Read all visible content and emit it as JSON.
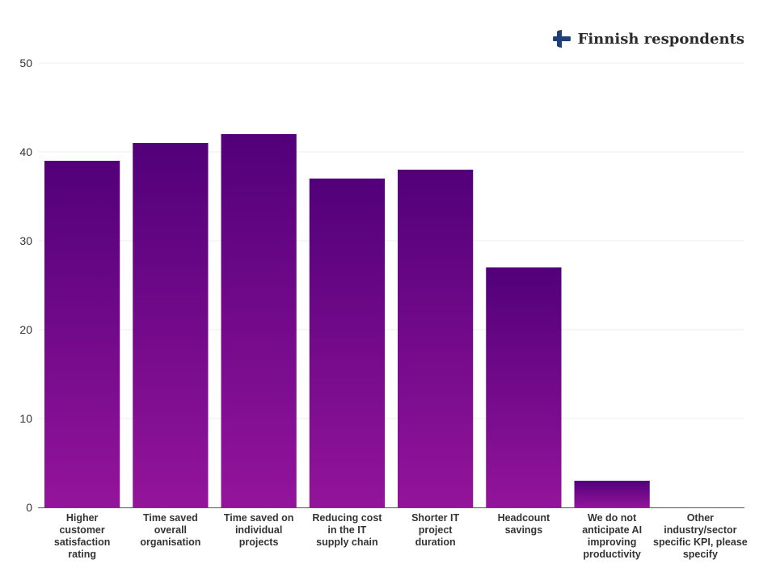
{
  "legend": {
    "label": "Finnish respondents",
    "flag": "finland-flag-icon",
    "flag_colors": {
      "background": "#ffffff",
      "cross": "#1f3f7a"
    }
  },
  "colors": {
    "bar_top": "#52007a",
    "bar_bottom": "#93149a",
    "grid": "#ececec",
    "axis": "#555555",
    "text": "#333333"
  },
  "chart_data": {
    "type": "bar",
    "categories": [
      "Higher customer satisfaction rating",
      "Time saved overall organisation",
      "Time saved on individual projects",
      "Reducing cost in the IT supply chain",
      "Shorter IT project duration",
      "Headcount savings",
      "We do not anticipate AI improving productivity",
      "Other industry/sector specific KPI, please specify"
    ],
    "category_lines": [
      [
        "Higher",
        "customer",
        "satisfaction",
        "rating"
      ],
      [
        "Time saved",
        "overall",
        "organisation"
      ],
      [
        "Time saved on",
        "individual",
        "projects"
      ],
      [
        "Reducing cost",
        "in the IT",
        "supply chain"
      ],
      [
        "Shorter IT",
        "project",
        "duration"
      ],
      [
        "Headcount",
        "savings"
      ],
      [
        "We do not",
        "anticipate AI",
        "improving",
        "productivity"
      ],
      [
        "Other",
        "industry/sector",
        "specific KPI, please",
        "specify"
      ]
    ],
    "values": [
      39,
      41,
      42,
      37,
      38,
      27,
      3,
      0
    ],
    "series": [
      {
        "name": "Finnish respondents",
        "values": [
          39,
          41,
          42,
          37,
          38,
          27,
          3,
          0
        ]
      }
    ],
    "yticks": [
      "0",
      "10",
      "20",
      "30",
      "40",
      "50"
    ],
    "ylim": [
      0,
      50
    ],
    "grid": true,
    "legend_position": "top-right",
    "title": "",
    "xlabel": "",
    "ylabel": ""
  }
}
